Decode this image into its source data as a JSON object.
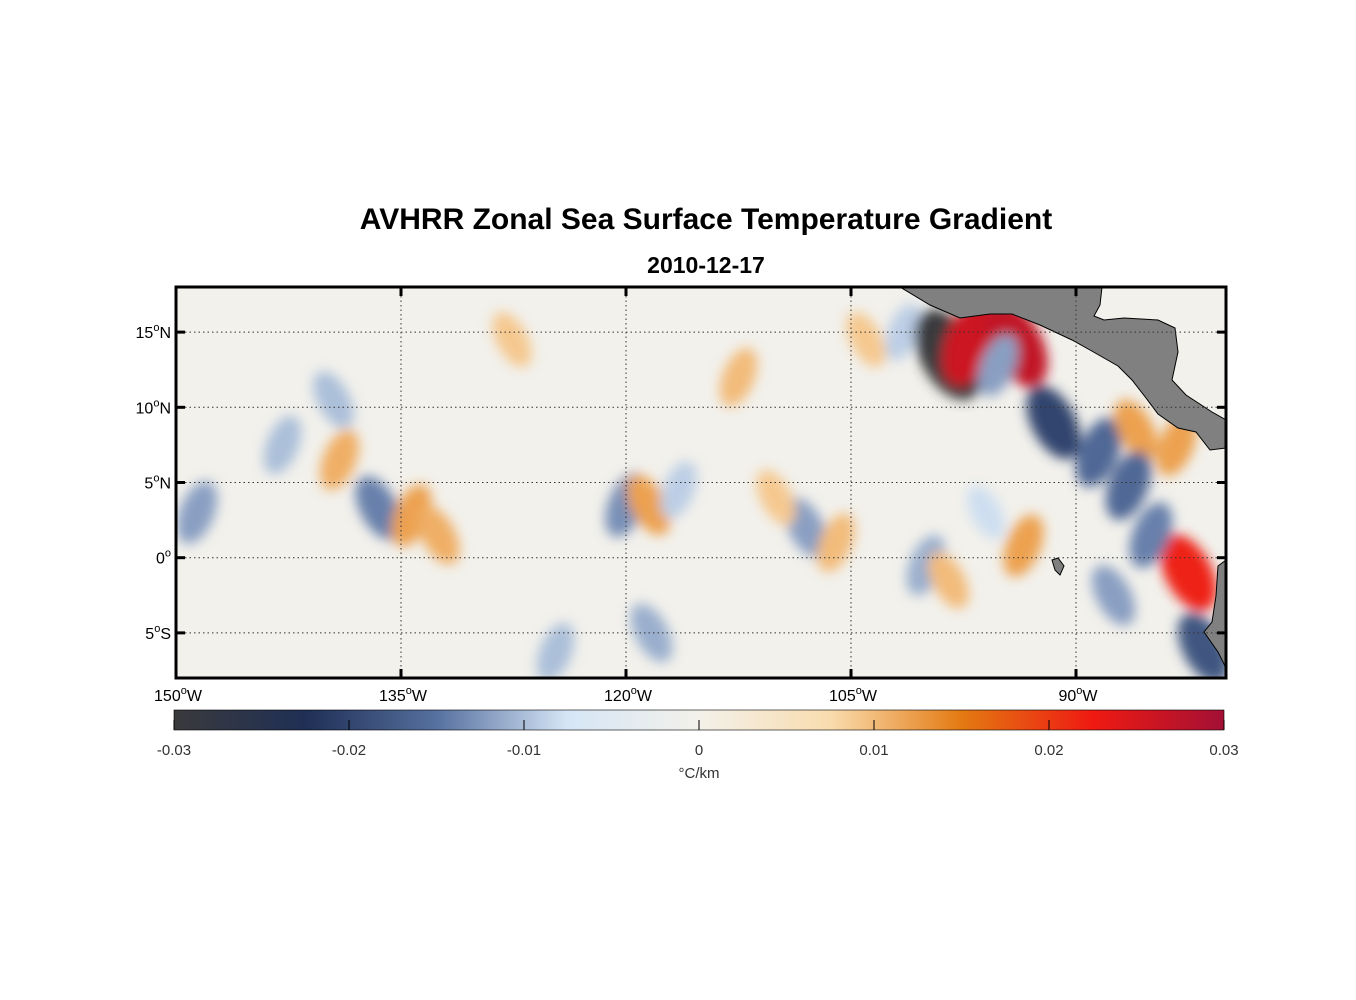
{
  "title": "AVHRR Zonal Sea Surface Temperature Gradient",
  "subtitle": "2010-12-17",
  "map": {
    "lon_range": [
      -150,
      -80
    ],
    "lat_range": [
      -8,
      18
    ],
    "grid_lines": "dotted",
    "land_color": "#808080",
    "x_ticks": [
      {
        "label_deg": "150",
        "label_hemi": "W",
        "lon": -150
      },
      {
        "label_deg": "135",
        "label_hemi": "W",
        "lon": -135
      },
      {
        "label_deg": "120",
        "label_hemi": "W",
        "lon": -120
      },
      {
        "label_deg": "105",
        "label_hemi": "W",
        "lon": -105
      },
      {
        "label_deg": "90",
        "label_hemi": "W",
        "lon": -90
      }
    ],
    "y_ticks": [
      {
        "label_deg": "15",
        "label_hemi": "N",
        "lat": 15
      },
      {
        "label_deg": "10",
        "label_hemi": "N",
        "lat": 10
      },
      {
        "label_deg": "5",
        "label_hemi": "N",
        "lat": 5
      },
      {
        "label_deg": "0",
        "label_hemi": "",
        "lat": 0
      },
      {
        "label_deg": "5",
        "label_hemi": "S",
        "lat": -5
      }
    ]
  },
  "colorbar": {
    "range": [
      -0.03,
      0.03
    ],
    "ticks": [
      "-0.03",
      "-0.02",
      "-0.01",
      "0",
      "0.01",
      "0.02",
      "0.03"
    ],
    "tick_values": [
      -0.03,
      -0.02,
      -0.01,
      0,
      0.01,
      0.02,
      0.03
    ],
    "unit_label": "°C/km",
    "colors": [
      "#3a3a3c",
      "#1f2f55",
      "#56709f",
      "#d6e6f6",
      "#f3f1ea",
      "#f9dcae",
      "#e37a12",
      "#ef1a12",
      "#a31035"
    ]
  },
  "features": [
    {
      "lon": -148.6,
      "lat": 3.0,
      "value": -0.012
    },
    {
      "lon": -136.5,
      "lat": 3.3,
      "value": -0.014
    },
    {
      "lon": -134.3,
      "lat": 2.8,
      "value": 0.012
    },
    {
      "lon": -132.5,
      "lat": 1.5,
      "value": 0.011
    },
    {
      "lon": -139.1,
      "lat": 6.5,
      "value": 0.011
    },
    {
      "lon": -139.5,
      "lat": 10.5,
      "value": -0.01
    },
    {
      "lon": -142.9,
      "lat": 7.5,
      "value": -0.01
    },
    {
      "lon": -127.6,
      "lat": 14.5,
      "value": 0.009
    },
    {
      "lon": -120.0,
      "lat": 3.5,
      "value": -0.013
    },
    {
      "lon": -118.5,
      "lat": 3.5,
      "value": 0.012
    },
    {
      "lon": -116.5,
      "lat": 4.5,
      "value": -0.009
    },
    {
      "lon": -118.3,
      "lat": -5.0,
      "value": -0.011
    },
    {
      "lon": -124.7,
      "lat": -6.3,
      "value": -0.01
    },
    {
      "lon": -108.0,
      "lat": 2.0,
      "value": -0.012
    },
    {
      "lon": -106.0,
      "lat": 1.0,
      "value": 0.01
    },
    {
      "lon": -110.0,
      "lat": 4.0,
      "value": 0.009
    },
    {
      "lon": -112.5,
      "lat": 12.0,
      "value": 0.01
    },
    {
      "lon": -104.0,
      "lat": 14.5,
      "value": 0.009
    },
    {
      "lon": -101.5,
      "lat": 15.0,
      "value": -0.009
    },
    {
      "lon": -98.5,
      "lat": 13.5,
      "value": -0.03
    },
    {
      "lon": -97.0,
      "lat": 14.3,
      "value": 0.026
    },
    {
      "lon": -94.0,
      "lat": 14.2,
      "value": 0.027
    },
    {
      "lon": -95.2,
      "lat": 12.8,
      "value": -0.012
    },
    {
      "lon": -91.5,
      "lat": 9.0,
      "value": -0.02
    },
    {
      "lon": -88.5,
      "lat": 7.0,
      "value": -0.016
    },
    {
      "lon": -86.0,
      "lat": 8.5,
      "value": 0.012
    },
    {
      "lon": -83.3,
      "lat": 7.5,
      "value": 0.012
    },
    {
      "lon": -82.5,
      "lat": -1.0,
      "value": 0.022
    },
    {
      "lon": -85.0,
      "lat": 1.5,
      "value": -0.014
    },
    {
      "lon": -81.5,
      "lat": -6.0,
      "value": -0.018
    },
    {
      "lon": -100.0,
      "lat": -0.5,
      "value": -0.011
    },
    {
      "lon": -98.5,
      "lat": -1.5,
      "value": 0.01
    },
    {
      "lon": -93.5,
      "lat": 0.8,
      "value": 0.012
    },
    {
      "lon": -96.0,
      "lat": 3.0,
      "value": -0.008
    },
    {
      "lon": -86.5,
      "lat": 4.8,
      "value": -0.016
    },
    {
      "lon": -87.5,
      "lat": -2.5,
      "value": -0.012
    }
  ]
}
